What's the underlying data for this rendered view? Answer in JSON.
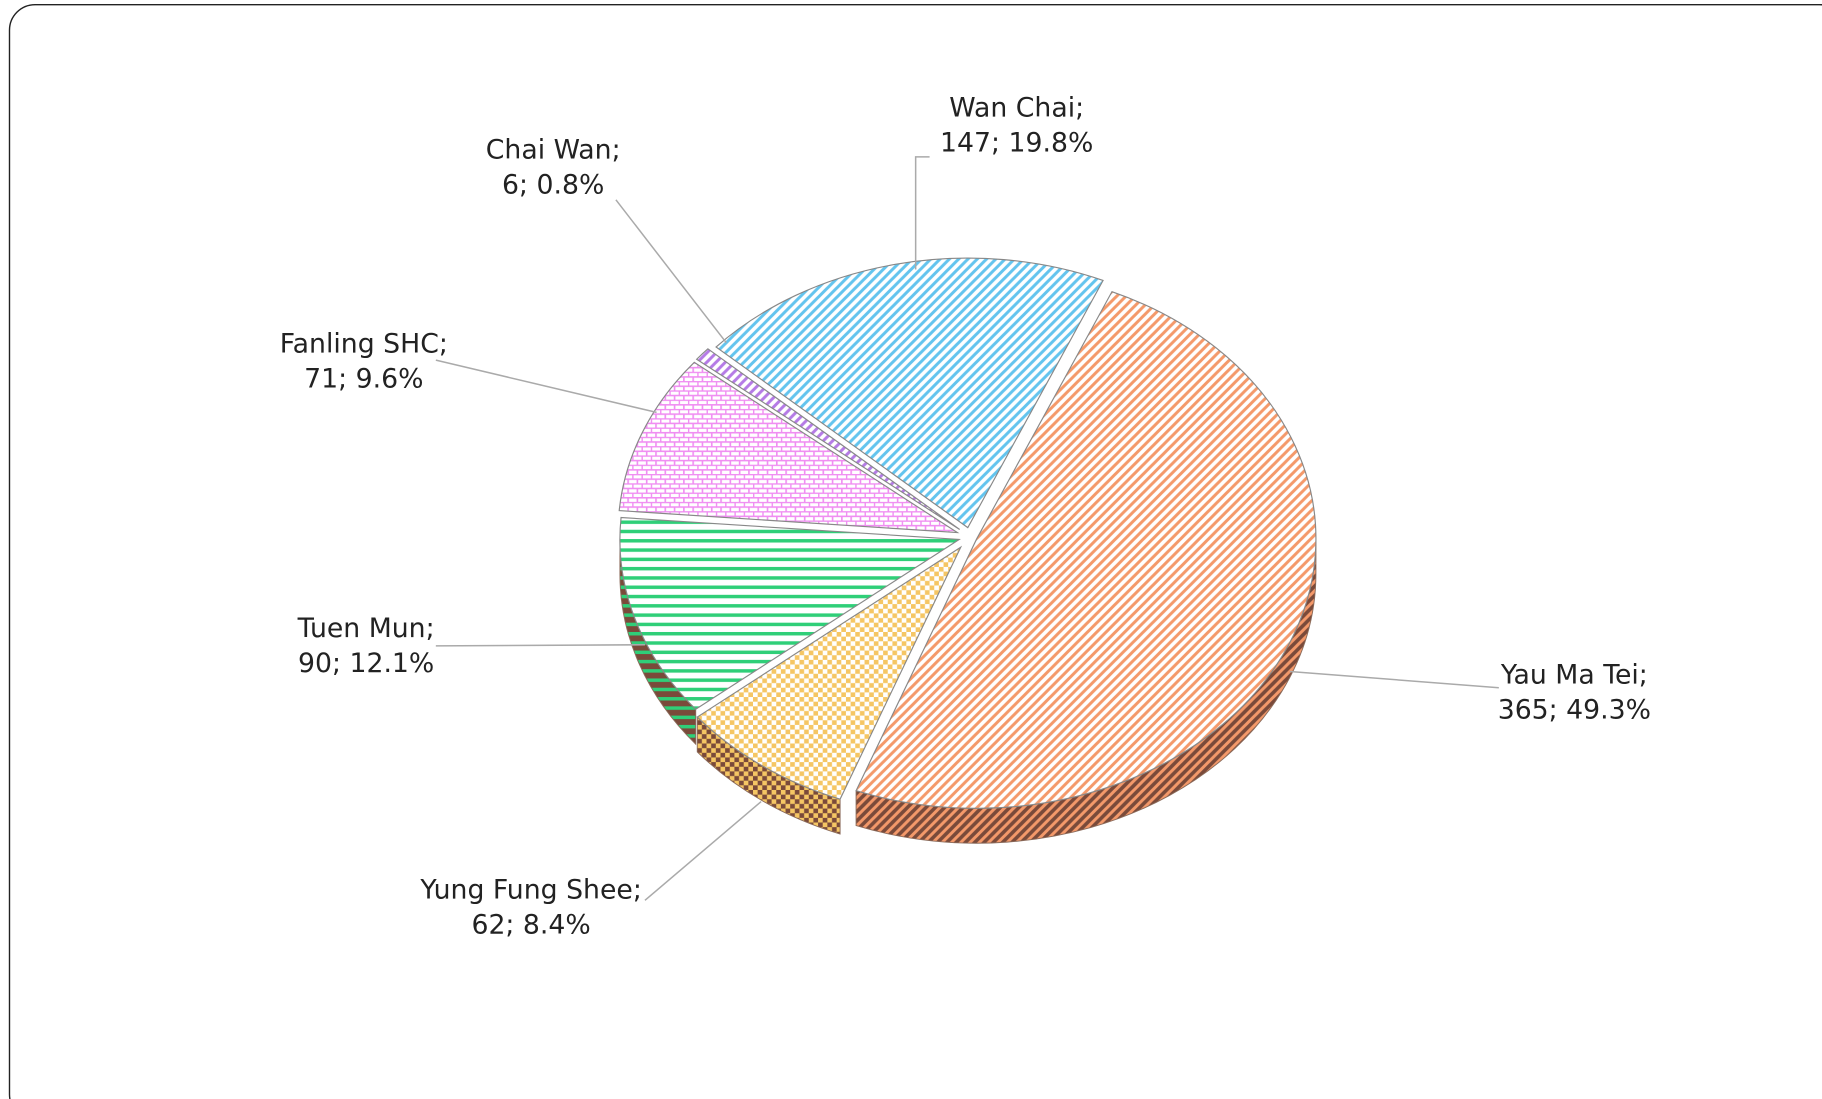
{
  "chart_data": {
    "type": "pie",
    "categories": [
      "Yau Ma Tei;",
      "Yung Fung Shee;",
      "Tuen Mun;",
      "Fanling SHC;",
      "Chai Wan;",
      "Wan Chai;"
    ],
    "values": [
      365,
      62,
      90,
      71,
      6,
      147
    ],
    "value_labels": [
      "365; 49.3%",
      "62; 8.4%",
      "90; 12.1%",
      "71; 9.6%",
      "6; 0.8%",
      "147; 19.8%"
    ],
    "colors": [
      "#f4996a",
      "#f5c664",
      "#2fcf78",
      "#f08ef2",
      "#b57be6",
      "#63c4ee"
    ]
  }
}
